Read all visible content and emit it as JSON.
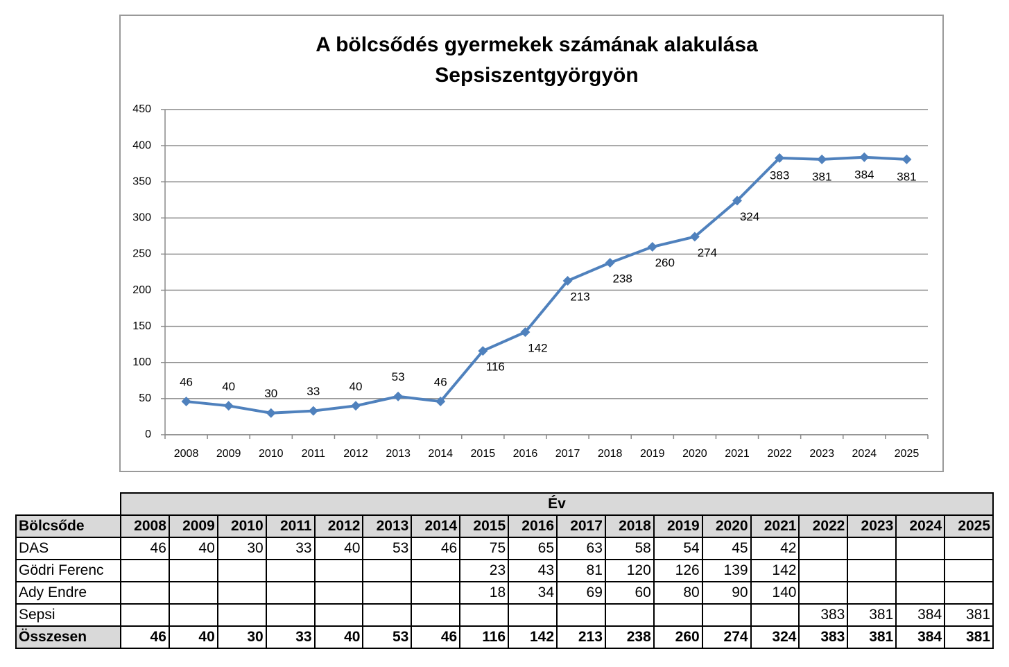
{
  "chart_data": {
    "type": "line",
    "title": [
      "A bölcsődés gyermekek számának alakulása",
      "Sepsiszentgyörgyön"
    ],
    "categories": [
      "2008",
      "2009",
      "2010",
      "2011",
      "2012",
      "2013",
      "2014",
      "2015",
      "2016",
      "2017",
      "2018",
      "2019",
      "2020",
      "2021",
      "2022",
      "2023",
      "2024",
      "2025"
    ],
    "values": [
      46,
      40,
      30,
      33,
      40,
      53,
      46,
      116,
      142,
      213,
      238,
      260,
      274,
      324,
      383,
      381,
      384,
      381
    ],
    "color": "#4f81bd",
    "ylim": [
      0,
      450
    ],
    "yticks": [
      0,
      50,
      100,
      150,
      200,
      250,
      300,
      350,
      400,
      450
    ],
    "grid": true
  },
  "table": {
    "header": "Év",
    "columns": [
      "Bölcsőde",
      "2008",
      "2009",
      "2010",
      "2011",
      "2012",
      "2013",
      "2014",
      "2015",
      "2016",
      "2017",
      "2018",
      "2019",
      "2020",
      "2021",
      "2022",
      "2023",
      "2024",
      "2025"
    ],
    "rows": [
      [
        "DAS",
        46,
        40,
        30,
        33,
        40,
        53,
        46,
        75,
        65,
        63,
        58,
        54,
        45,
        42,
        null,
        null,
        null,
        null
      ],
      [
        "Gödri Ferenc",
        null,
        null,
        null,
        null,
        null,
        null,
        null,
        23,
        43,
        81,
        120,
        126,
        139,
        142,
        null,
        null,
        null,
        null
      ],
      [
        "Ady Endre",
        null,
        null,
        null,
        null,
        null,
        null,
        null,
        18,
        34,
        69,
        60,
        80,
        90,
        140,
        null,
        null,
        null,
        null
      ],
      [
        "Sepsi",
        null,
        null,
        null,
        null,
        null,
        null,
        null,
        null,
        null,
        null,
        null,
        null,
        null,
        null,
        383,
        381,
        384,
        381
      ],
      [
        "Összesen",
        46,
        40,
        30,
        33,
        40,
        53,
        46,
        116,
        142,
        213,
        238,
        260,
        274,
        324,
        383,
        381,
        384,
        381
      ]
    ]
  }
}
